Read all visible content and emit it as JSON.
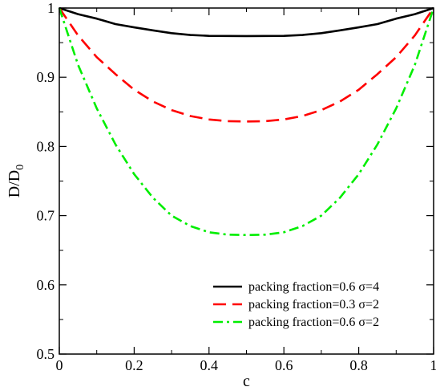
{
  "chart_data": {
    "type": "line",
    "title": "",
    "xlabel": "c",
    "ylabel": "D/D",
    "ylabel_sub": "0",
    "xlim": [
      0,
      1
    ],
    "ylim": [
      0.5,
      1
    ],
    "xticks": [
      0,
      0.2,
      0.4,
      0.6,
      0.8,
      1
    ],
    "xtick_labels": [
      "0",
      "0.2",
      "0.4",
      "0.6",
      "0.8",
      "1"
    ],
    "yticks": [
      0.5,
      0.6,
      0.7,
      0.8,
      0.9,
      1
    ],
    "ytick_labels": [
      "0.5",
      "0.6",
      "0.7",
      "0.8",
      "0.9",
      "1"
    ],
    "grid": false,
    "legend_position": "bottom-right",
    "x": [
      0,
      0.05,
      0.1,
      0.15,
      0.2,
      0.25,
      0.3,
      0.35,
      0.4,
      0.45,
      0.5,
      0.55,
      0.6,
      0.65,
      0.7,
      0.75,
      0.8,
      0.85,
      0.9,
      0.95,
      1
    ],
    "series": [
      {
        "name": "packing fraction=0.6 σ=4",
        "color": "#000000",
        "dash": "solid",
        "values": [
          1.0,
          0.9911,
          0.9847,
          0.9768,
          0.9721,
          0.9677,
          0.9637,
          0.9611,
          0.9598,
          0.9596,
          0.9595,
          0.9596,
          0.9598,
          0.9611,
          0.9637,
          0.9677,
          0.9721,
          0.9768,
          0.9847,
          0.9911,
          1.0
        ]
      },
      {
        "name": "packing fraction=0.3 σ=2",
        "color": "#ff0000",
        "dash": "dashed",
        "values": [
          1.0,
          0.9605,
          0.929,
          0.9045,
          0.882,
          0.865,
          0.8525,
          0.844,
          0.839,
          0.8365,
          0.836,
          0.8365,
          0.839,
          0.844,
          0.8525,
          0.865,
          0.882,
          0.9045,
          0.929,
          0.9605,
          1.0
        ]
      },
      {
        "name": "packing fraction=0.6 σ=2",
        "color": "#00ee00",
        "dash": "dashdot",
        "values": [
          1.0,
          0.918,
          0.855,
          0.803,
          0.76,
          0.726,
          0.7,
          0.685,
          0.676,
          0.6725,
          0.672,
          0.6725,
          0.676,
          0.685,
          0.7,
          0.726,
          0.76,
          0.803,
          0.855,
          0.918,
          1.0
        ]
      }
    ]
  }
}
